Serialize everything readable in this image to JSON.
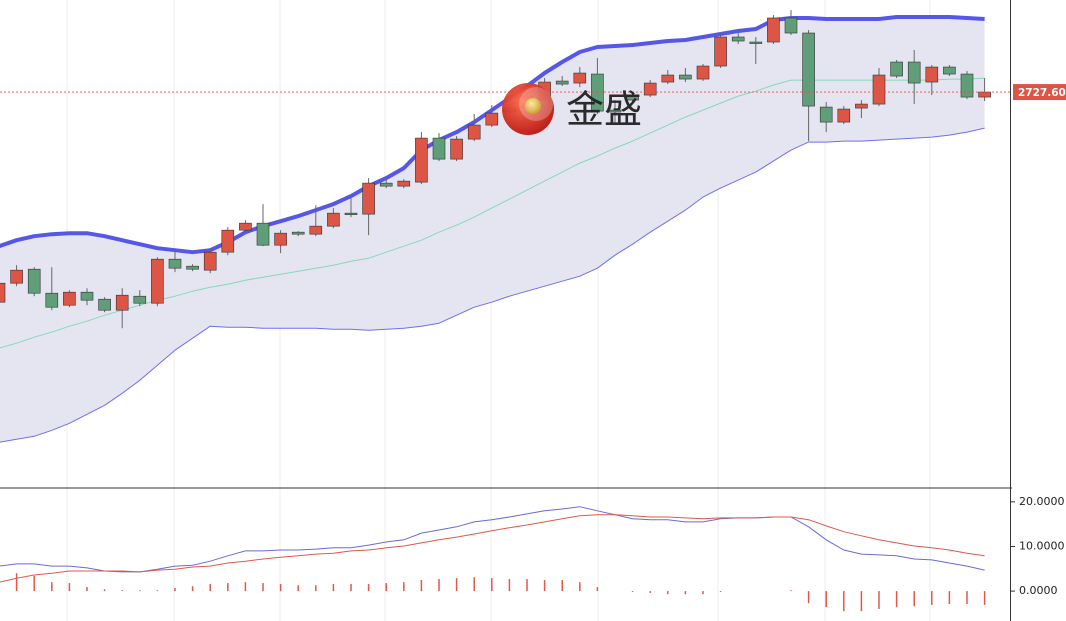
{
  "chart_data": [
    {
      "type": "candlestick",
      "ylim": [
        2609.2,
        2755.2
      ],
      "up_color": "#dd5544",
      "down_color": "#5f9e78",
      "open": [
        2664.6,
        2670.3,
        2674.5,
        2667.3,
        2663.7,
        2667.6,
        2665.5,
        2662.2,
        2666.4,
        2664.3,
        2677.5,
        2675.4,
        2674.2,
        2679.6,
        2686.2,
        2688.3,
        2681.7,
        2685.6,
        2685.0,
        2687.4,
        2691.3,
        2691.0,
        2700.3,
        2699.4,
        2700.6,
        2713.8,
        2707.5,
        2713.5,
        2717.7,
        2722.8,
        2722.8,
        2725.2,
        2730.9,
        2730.3,
        2733.0,
        2722.2,
        2726.7,
        2726.7,
        2730.6,
        2732.7,
        2731.5,
        2735.4,
        2744.1,
        2742.6,
        2742.6,
        2749.8,
        2745.3,
        2723.1,
        2718.6,
        2722.8,
        2724.0,
        2736.6,
        2736.6,
        2730.6,
        2735.1,
        2733.0,
        2726.1
      ],
      "high": [
        2671.8,
        2675.7,
        2675.1,
        2675.1,
        2668.2,
        2668.8,
        2666.1,
        2668.8,
        2668.2,
        2678.1,
        2679.6,
        2676.0,
        2680.8,
        2687.1,
        2689.2,
        2694.0,
        2686.2,
        2685.9,
        2693.7,
        2692.8,
        2696.1,
        2701.8,
        2701.8,
        2701.5,
        2715.6,
        2715.3,
        2714.4,
        2721.0,
        2723.7,
        2724.0,
        2727.6,
        2731.8,
        2732.4,
        2735.1,
        2737.8,
        2725.2,
        2727.6,
        2731.2,
        2734.2,
        2734.8,
        2736.0,
        2745.3,
        2745.3,
        2744.1,
        2750.7,
        2752.2,
        2746.2,
        2724.6,
        2723.4,
        2725.2,
        2734.8,
        2737.2,
        2740.2,
        2735.7,
        2735.7,
        2733.9,
        2731.8
      ],
      "low": [
        2663.7,
        2669.4,
        2666.4,
        2662.2,
        2663.1,
        2663.7,
        2661.6,
        2656.8,
        2663.4,
        2663.4,
        2673.6,
        2673.9,
        2673.3,
        2678.7,
        2685.6,
        2681.4,
        2679.3,
        2684.4,
        2684.4,
        2686.8,
        2690.1,
        2684.7,
        2698.8,
        2698.8,
        2700.0,
        2706.9,
        2706.9,
        2712.9,
        2717.1,
        2721.0,
        2722.2,
        2724.6,
        2729.4,
        2729.1,
        2721.0,
        2718.3,
        2724.3,
        2726.1,
        2730.0,
        2730.6,
        2730.9,
        2734.8,
        2742.0,
        2736.0,
        2742.0,
        2744.7,
        2712.9,
        2715.6,
        2718.0,
        2719.8,
        2723.4,
        2731.8,
        2724.0,
        2726.7,
        2732.4,
        2725.5,
        2724.9
      ],
      "close": [
        2670.3,
        2674.2,
        2667.3,
        2663.1,
        2667.6,
        2665.2,
        2662.2,
        2666.7,
        2664.3,
        2677.5,
        2674.8,
        2674.5,
        2679.6,
        2686.2,
        2688.3,
        2681.7,
        2685.3,
        2685.0,
        2687.4,
        2691.3,
        2691.0,
        2700.3,
        2699.4,
        2700.9,
        2713.8,
        2707.5,
        2713.5,
        2717.7,
        2721.3,
        2721.6,
        2726.4,
        2730.6,
        2730.0,
        2733.3,
        2721.9,
        2721.6,
        2725.2,
        2730.3,
        2732.7,
        2731.5,
        2735.4,
        2744.1,
        2742.9,
        2742.3,
        2749.8,
        2745.3,
        2723.4,
        2718.6,
        2722.5,
        2724.0,
        2732.7,
        2732.4,
        2730.3,
        2735.1,
        2733.0,
        2726.1,
        2727.6
      ],
      "series": [
        {
          "color": "#5656e8",
          "values": [
            2681.4,
            2683.2,
            2684.4,
            2685.0,
            2685.3,
            2685.3,
            2684.4,
            2683.2,
            2682.0,
            2680.8,
            2680.2,
            2679.6,
            2680.2,
            2682.6,
            2685.6,
            2687.4,
            2688.9,
            2690.4,
            2692.2,
            2694.0,
            2696.4,
            2699.4,
            2701.8,
            2704.8,
            2710.2,
            2713.2,
            2715.6,
            2718.6,
            2722.2,
            2725.8,
            2729.4,
            2733.3,
            2736.6,
            2739.6,
            2741.1,
            2741.4,
            2741.7,
            2742.3,
            2742.9,
            2743.2,
            2744.1,
            2745.0,
            2745.9,
            2746.5,
            2749.2,
            2749.8,
            2749.8,
            2749.5,
            2749.5,
            2749.5,
            2749.5,
            2750.1,
            2750.1,
            2750.1,
            2750.1,
            2749.8,
            2749.5
          ]
        },
        {
          "color": "#86d8b8",
          "values": [
            2650.8,
            2652.3,
            2654.1,
            2655.6,
            2657.4,
            2658.9,
            2660.7,
            2662.2,
            2663.7,
            2665.2,
            2666.4,
            2667.9,
            2669.1,
            2670.0,
            2671.2,
            2672.1,
            2673.0,
            2673.9,
            2674.8,
            2675.7,
            2676.9,
            2677.8,
            2679.6,
            2681.4,
            2683.2,
            2685.6,
            2687.7,
            2690.1,
            2692.8,
            2695.5,
            2698.2,
            2700.9,
            2703.6,
            2706.3,
            2708.4,
            2710.8,
            2712.9,
            2715.3,
            2717.7,
            2720.1,
            2722.2,
            2724.3,
            2726.4,
            2727.9,
            2729.7,
            2731.2,
            2731.2,
            2731.2,
            2731.2,
            2731.2,
            2731.2,
            2731.2,
            2731.2,
            2731.2,
            2731.5,
            2731.5,
            2731.8
          ]
        },
        {
          "color": "#6e6ef0",
          "values": [
            2622.6,
            2623.5,
            2624.4,
            2626.2,
            2628.3,
            2631.0,
            2633.7,
            2637.3,
            2641.2,
            2645.7,
            2650.2,
            2653.8,
            2657.4,
            2657.1,
            2657.1,
            2656.8,
            2656.8,
            2656.8,
            2656.8,
            2656.5,
            2656.5,
            2656.2,
            2656.5,
            2656.8,
            2657.4,
            2658.3,
            2660.7,
            2663.1,
            2664.6,
            2666.4,
            2667.9,
            2669.4,
            2670.9,
            2672.4,
            2674.8,
            2678.7,
            2682.0,
            2685.6,
            2688.9,
            2692.2,
            2696.1,
            2698.8,
            2701.2,
            2703.6,
            2706.9,
            2710.2,
            2712.6,
            2712.6,
            2712.9,
            2712.9,
            2713.2,
            2713.5,
            2713.8,
            2714.1,
            2714.7,
            2715.6,
            2716.8
          ]
        }
      ],
      "band_fill": "#e5e5f1",
      "current_price": {
        "value": 2727.6,
        "label": "2727.60"
      },
      "watermark": "金盛"
    },
    {
      "type": "macd",
      "ylim": [
        -6.7,
        23.1
      ],
      "yticks": [
        {
          "value": 20,
          "label": "20.0000"
        },
        {
          "value": 10,
          "label": "10.0000"
        },
        {
          "value": 0,
          "label": "0.0000"
        }
      ],
      "series": [
        {
          "color": "#6a6ad8",
          "values": [
            5.6,
            6.1,
            6.1,
            5.6,
            5.6,
            5.2,
            4.5,
            4.3,
            4.3,
            4.9,
            5.6,
            5.8,
            6.7,
            7.9,
            9.0,
            9.0,
            9.2,
            9.2,
            9.4,
            9.7,
            9.7,
            10.3,
            11.0,
            11.5,
            13.0,
            13.7,
            14.4,
            15.5,
            16.0,
            16.6,
            17.3,
            18.0,
            18.4,
            18.9,
            18.0,
            17.1,
            16.2,
            16.0,
            16.0,
            15.5,
            15.5,
            16.2,
            16.4,
            16.4,
            16.6,
            16.6,
            14.4,
            11.5,
            9.2,
            8.3,
            8.1,
            7.9,
            7.2,
            7.0,
            6.3,
            5.6,
            4.7
          ]
        },
        {
          "color": "#e0584a",
          "values": [
            2.0,
            2.9,
            3.6,
            4.0,
            4.5,
            4.5,
            4.5,
            4.5,
            4.3,
            4.7,
            4.9,
            5.4,
            5.6,
            6.3,
            6.7,
            7.2,
            7.6,
            7.9,
            8.3,
            8.5,
            9.0,
            9.2,
            9.7,
            10.1,
            10.8,
            11.5,
            12.1,
            12.8,
            13.5,
            14.2,
            14.8,
            15.5,
            16.2,
            16.9,
            17.1,
            17.1,
            16.9,
            16.6,
            16.6,
            16.4,
            16.2,
            16.4,
            16.4,
            16.4,
            16.6,
            16.6,
            16.0,
            14.6,
            13.3,
            12.4,
            11.5,
            10.8,
            10.1,
            9.7,
            9.2,
            8.5,
            7.9
          ]
        }
      ],
      "histogram": {
        "color": "#e0584a",
        "values": [
          3.6,
          4.0,
          3.4,
          2.0,
          1.8,
          0.9,
          0.4,
          0.2,
          0.2,
          0.2,
          0.7,
          1.1,
          1.6,
          1.8,
          2.0,
          1.8,
          1.6,
          1.3,
          1.3,
          1.6,
          1.6,
          1.6,
          1.8,
          2.0,
          2.5,
          2.7,
          2.9,
          3.1,
          2.9,
          2.7,
          2.7,
          2.5,
          2.5,
          2.0,
          0.9,
          0,
          -0.2,
          -0.4,
          -0.7,
          -0.7,
          -0.7,
          -0.2,
          0,
          0,
          0,
          0.2,
          -2.7,
          -3.6,
          -4.5,
          -4.5,
          -4.0,
          -3.6,
          -3.4,
          -3.1,
          -2.9,
          -2.9,
          -3.1
        ]
      }
    }
  ]
}
